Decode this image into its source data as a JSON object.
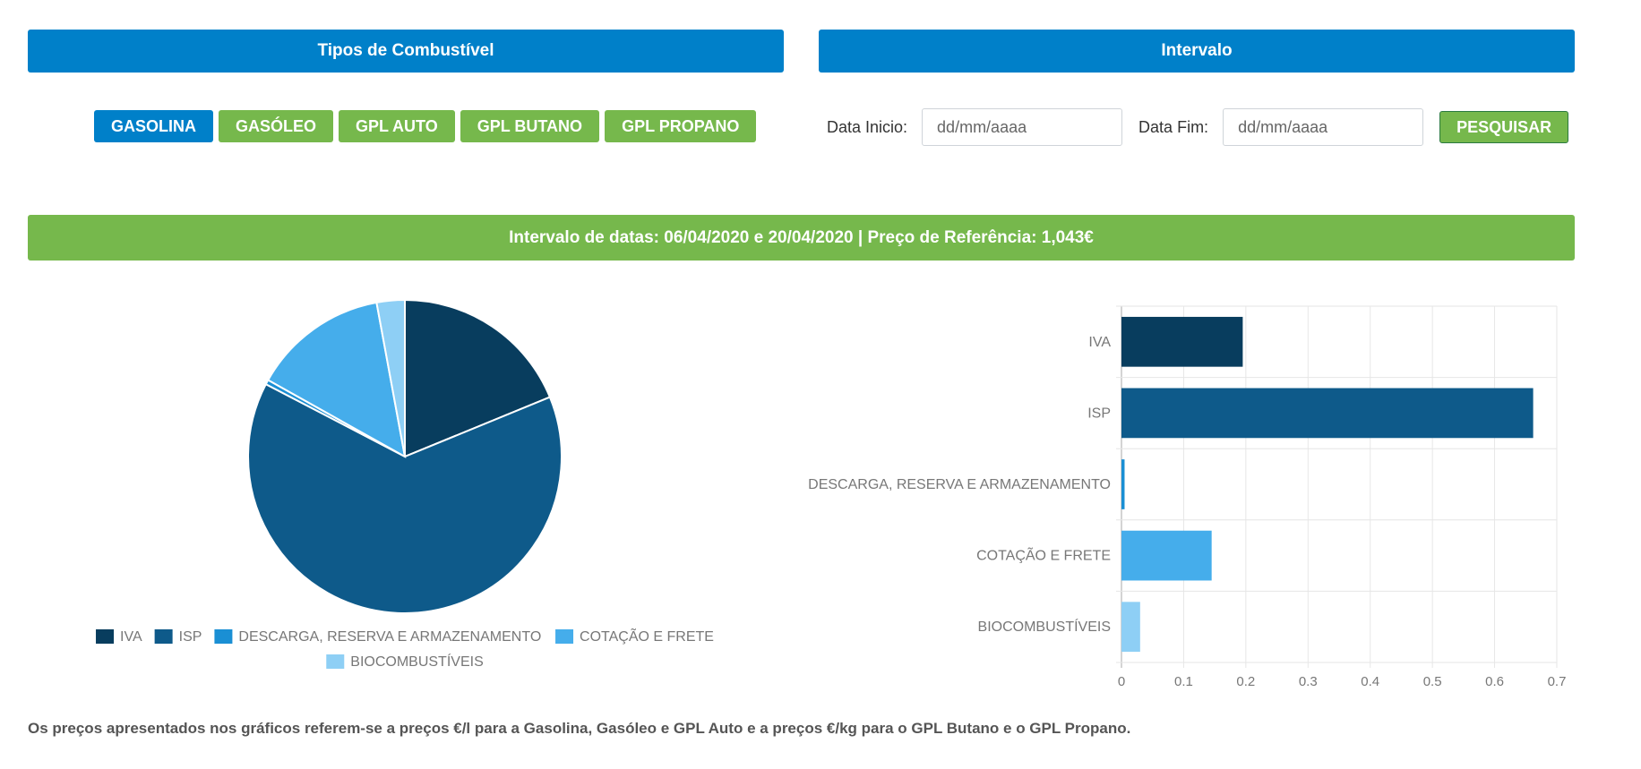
{
  "headers": {
    "tipos": "Tipos de Combustível",
    "intervalo": "Intervalo"
  },
  "fuel_types": [
    {
      "label": "GASOLINA",
      "active": true
    },
    {
      "label": "GASÓLEO",
      "active": false
    },
    {
      "label": "GPL AUTO",
      "active": false
    },
    {
      "label": "GPL BUTANO",
      "active": false
    },
    {
      "label": "GPL PROPANO",
      "active": false
    }
  ],
  "date_filter": {
    "start_label": "Data Inicio:",
    "start_placeholder": "dd/mm/aaaa",
    "end_label": "Data Fim:",
    "end_placeholder": "dd/mm/aaaa",
    "search_label": "PESQUISAR"
  },
  "range_banner": "Intervalo de datas: 06/04/2020 e 20/04/2020 | Preço de Referência: 1,043€",
  "colors": {
    "primary_blue": "#0080c9",
    "green": "#76b84c"
  },
  "chart_data": [
    {
      "type": "pie",
      "categories": [
        "IVA",
        "ISP",
        "DESCARGA, RESERVA E ARMAZENAMENTO",
        "COTAÇÃO E FRETE",
        "BIOCOMBUSTÍVEIS"
      ],
      "values": [
        0.195,
        0.662,
        0.005,
        0.145,
        0.03
      ],
      "colors": [
        "#083d5e",
        "#0e5a8a",
        "#1a8fd4",
        "#45adeb",
        "#8ecff5"
      ],
      "legend_position": "bottom"
    },
    {
      "type": "bar",
      "orientation": "horizontal",
      "categories": [
        "IVA",
        "ISP",
        "DESCARGA, RESERVA E ARMAZENAMENTO",
        "COTAÇÃO E FRETE",
        "BIOCOMBUSTÍVEIS"
      ],
      "values": [
        0.195,
        0.662,
        0.005,
        0.145,
        0.03
      ],
      "colors": [
        "#083d5e",
        "#0e5a8a",
        "#1a8fd4",
        "#45adeb",
        "#8ecff5"
      ],
      "xlim": [
        0,
        0.7
      ],
      "x_ticks": [
        "0",
        "0.1",
        "0.2",
        "0.3",
        "0.4",
        "0.5",
        "0.6",
        "0.7"
      ],
      "grid": true
    }
  ],
  "footnote": "Os preços apresentados nos gráficos referem-se a preços €/l para a Gasolina, Gasóleo e GPL Auto e a preços €/kg para o GPL Butano e o GPL Propano."
}
